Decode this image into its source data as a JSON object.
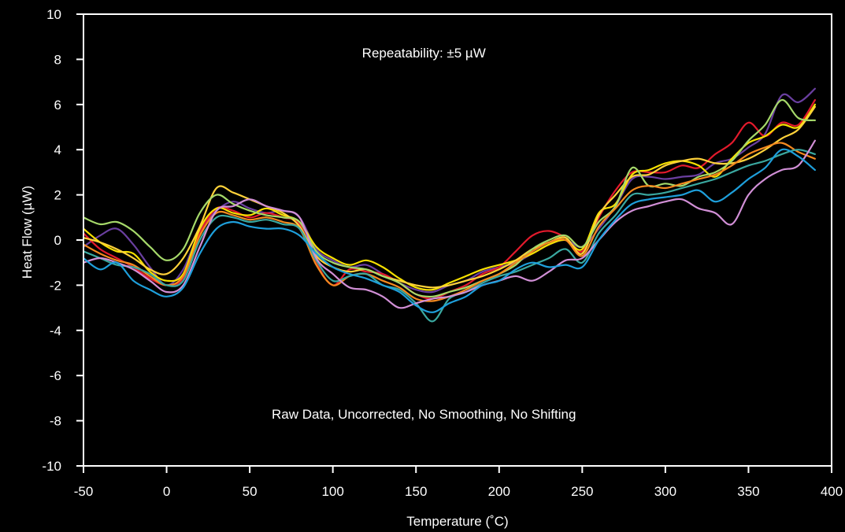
{
  "chart_data": {
    "type": "line",
    "title": "",
    "xlabel": "Temperature (˚C)",
    "ylabel": "Heat Flow (µW)",
    "xlim": [
      -50,
      400
    ],
    "ylim": [
      -10,
      10
    ],
    "xticks": [
      -50,
      0,
      50,
      100,
      150,
      200,
      250,
      300,
      350,
      400
    ],
    "yticks": [
      -10,
      -8,
      -6,
      -4,
      -2,
      0,
      2,
      4,
      6,
      8,
      10
    ],
    "grid": false,
    "legend": "none",
    "background": "#000000",
    "annotations": [
      {
        "text": "Repeatability: ±5 µW",
        "x": 150,
        "y": 8.3
      },
      {
        "text": "Raw Data, Uncorrected, No Smoothing, No Shifting",
        "x": 150,
        "y": -7.7
      }
    ],
    "x": [
      -50,
      -40,
      -30,
      -20,
      -10,
      0,
      10,
      20,
      30,
      40,
      50,
      60,
      70,
      80,
      90,
      100,
      110,
      120,
      130,
      140,
      150,
      160,
      170,
      180,
      190,
      200,
      210,
      220,
      230,
      240,
      250,
      260,
      270,
      280,
      290,
      300,
      310,
      320,
      330,
      340,
      350,
      360,
      370,
      380,
      390
    ],
    "series": [
      {
        "color": "#6a3fa0",
        "values": [
          -0.3,
          0.2,
          0.5,
          -0.2,
          -1.2,
          -2.0,
          -1.3,
          0.4,
          1.3,
          1.7,
          1.4,
          1.2,
          1.3,
          1.0,
          -0.4,
          -0.9,
          -1.2,
          -1.1,
          -1.5,
          -1.9,
          -2.2,
          -2.3,
          -2.0,
          -1.8,
          -1.4,
          -1.2,
          -1.0,
          -0.6,
          -0.2,
          0.0,
          -0.3,
          0.5,
          1.5,
          2.7,
          2.8,
          2.7,
          2.8,
          2.9,
          3.4,
          3.6,
          4.1,
          4.7,
          6.4,
          6.1,
          6.7
        ]
      },
      {
        "color": "#e31a2c",
        "values": [
          0.3,
          -0.4,
          -0.8,
          -1.2,
          -1.7,
          -2.0,
          -1.7,
          0.3,
          1.4,
          1.3,
          1.0,
          1.2,
          1.0,
          0.7,
          -1.0,
          -2.0,
          -1.3,
          -1.4,
          -1.5,
          -1.9,
          -2.4,
          -2.6,
          -2.3,
          -2.0,
          -1.5,
          -1.2,
          -0.5,
          0.2,
          0.4,
          0.1,
          -0.5,
          1.0,
          2.2,
          3.0,
          3.0,
          3.0,
          3.3,
          3.2,
          3.8,
          4.3,
          5.2,
          4.6,
          5.2,
          5.1,
          6.2
        ]
      },
      {
        "color": "#f7e000",
        "values": [
          0.5,
          -0.1,
          -0.5,
          -0.6,
          -1.4,
          -1.8,
          -1.5,
          0.5,
          1.4,
          1.2,
          1.1,
          1.4,
          1.1,
          0.8,
          -0.3,
          -0.8,
          -1.1,
          -0.9,
          -1.2,
          -1.7,
          -2.1,
          -2.2,
          -1.9,
          -1.6,
          -1.3,
          -1.1,
          -0.9,
          -0.6,
          -0.2,
          0.0,
          -0.4,
          1.2,
          1.6,
          2.9,
          3.1,
          3.4,
          3.5,
          3.3,
          2.8,
          3.6,
          4.3,
          4.6,
          5.1,
          5.0,
          6.0
        ]
      },
      {
        "color": "#ffd23a",
        "values": [
          0.1,
          -0.1,
          -0.4,
          -0.8,
          -1.3,
          -1.5,
          -0.8,
          0.6,
          2.3,
          2.1,
          1.8,
          1.5,
          1.2,
          0.6,
          -0.7,
          -1.2,
          -1.4,
          -1.3,
          -1.6,
          -1.8,
          -2.0,
          -2.1,
          -2.0,
          -1.8,
          -1.6,
          -1.3,
          -0.9,
          -0.4,
          -0.1,
          0.1,
          -0.6,
          1.1,
          2.0,
          2.8,
          2.9,
          3.3,
          3.5,
          3.6,
          3.4,
          3.4,
          3.6,
          4.0,
          4.5,
          4.9,
          5.9
        ]
      },
      {
        "color": "#a6d96a",
        "values": [
          1.0,
          0.7,
          0.8,
          0.4,
          -0.3,
          -0.9,
          -0.4,
          1.2,
          2.0,
          1.6,
          1.3,
          1.1,
          1.0,
          0.8,
          -0.5,
          -1.0,
          -1.2,
          -1.3,
          -1.6,
          -1.9,
          -2.4,
          -2.5,
          -2.3,
          -2.1,
          -1.8,
          -1.5,
          -1.1,
          -0.4,
          0.0,
          0.2,
          -0.3,
          0.8,
          1.5,
          3.2,
          2.4,
          2.5,
          2.4,
          2.8,
          3.0,
          3.5,
          4.4,
          5.1,
          6.2,
          5.4,
          5.3
        ]
      },
      {
        "color": "#f4891f",
        "values": [
          -0.2,
          -0.6,
          -0.9,
          -1.1,
          -1.6,
          -2.0,
          -1.6,
          0.2,
          1.2,
          1.1,
          0.9,
          1.0,
          0.8,
          0.5,
          -1.1,
          -2.0,
          -1.6,
          -1.5,
          -1.8,
          -2.1,
          -2.6,
          -2.7,
          -2.5,
          -2.2,
          -1.8,
          -1.5,
          -1.0,
          -0.5,
          -0.1,
          0.0,
          -0.7,
          0.6,
          1.4,
          2.2,
          2.4,
          2.3,
          2.5,
          2.7,
          2.9,
          3.3,
          3.8,
          4.1,
          4.3,
          3.9,
          3.6
        ]
      },
      {
        "color": "#3aa8a0",
        "values": [
          -0.5,
          -0.8,
          -1.1,
          -1.2,
          -1.5,
          -2.0,
          -1.8,
          0.0,
          1.0,
          1.0,
          0.8,
          0.9,
          0.7,
          0.5,
          -0.9,
          -1.8,
          -1.6,
          -1.5,
          -2.0,
          -2.2,
          -2.8,
          -3.6,
          -2.6,
          -2.3,
          -1.9,
          -1.6,
          -1.4,
          -1.1,
          -0.8,
          -0.4,
          -1.0,
          0.3,
          1.1,
          2.0,
          2.0,
          2.1,
          2.3,
          2.5,
          2.7,
          3.0,
          3.3,
          3.5,
          3.8,
          4.0,
          3.8
        ]
      },
      {
        "color": "#d18fd6",
        "values": [
          -1.0,
          -0.8,
          -1.0,
          -1.3,
          -1.8,
          -2.3,
          -2.0,
          -0.3,
          1.3,
          1.5,
          1.8,
          1.5,
          1.3,
          1.0,
          -0.8,
          -1.5,
          -2.1,
          -2.2,
          -2.5,
          -3.0,
          -2.8,
          -2.6,
          -2.5,
          -2.3,
          -2.0,
          -1.8,
          -1.6,
          -1.8,
          -1.4,
          -0.9,
          -0.8,
          0.0,
          0.8,
          1.3,
          1.5,
          1.7,
          1.8,
          1.4,
          1.2,
          0.7,
          2.0,
          2.7,
          3.1,
          3.3,
          4.4
        ]
      },
      {
        "color": "#1e9fdb",
        "values": [
          -0.8,
          -1.3,
          -1.0,
          -1.8,
          -2.2,
          -2.5,
          -2.1,
          -0.6,
          0.5,
          0.8,
          0.6,
          0.5,
          0.5,
          0.2,
          -0.6,
          -1.2,
          -1.5,
          -1.7,
          -2.0,
          -2.3,
          -2.9,
          -3.2,
          -2.8,
          -2.5,
          -2.0,
          -1.8,
          -1.3,
          -1.0,
          -1.2,
          -1.1,
          -1.2,
          0.0,
          0.9,
          1.6,
          1.8,
          1.9,
          2.0,
          2.2,
          1.7,
          2.1,
          2.7,
          3.2,
          4.0,
          3.7,
          3.1
        ]
      }
    ]
  }
}
